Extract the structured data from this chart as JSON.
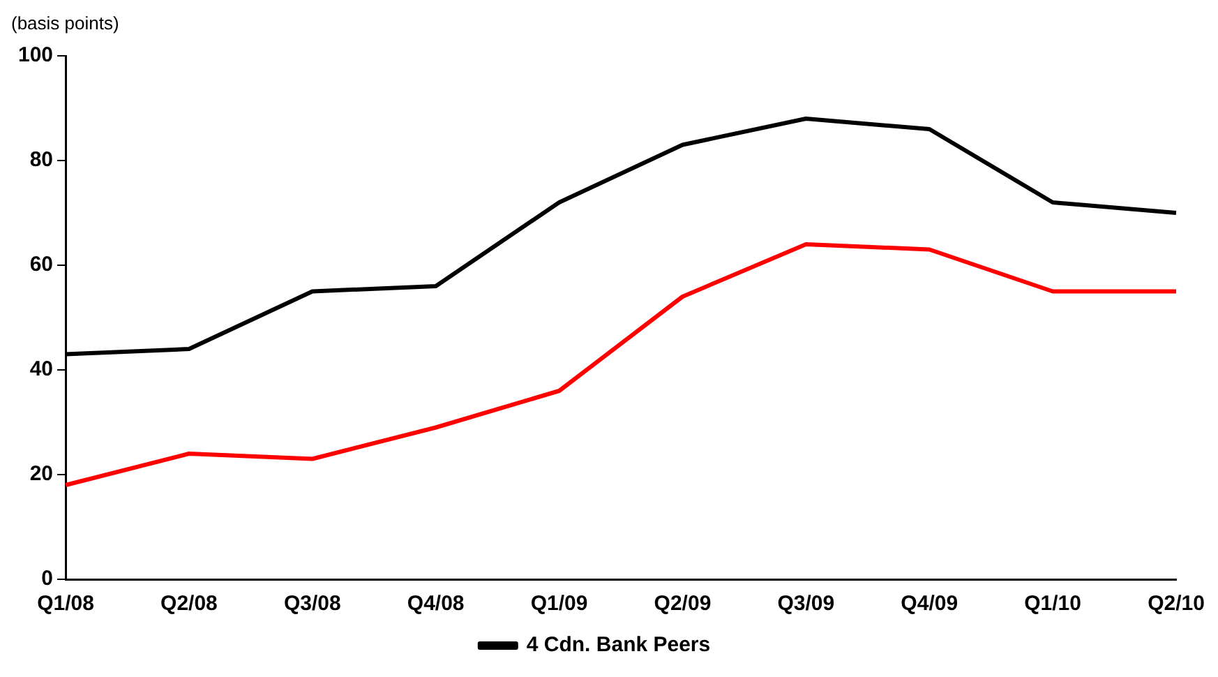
{
  "chart_data": {
    "type": "line",
    "ylabel": "(basis points)",
    "categories": [
      "Q1/08",
      "Q2/08",
      "Q3/08",
      "Q4/08",
      "Q1/09",
      "Q2/09",
      "Q3/09",
      "Q4/09",
      "Q1/10",
      "Q2/10"
    ],
    "series": [
      {
        "color": "#ff0000",
        "values": [
          18,
          24,
          23,
          29,
          36,
          54,
          64,
          63,
          55,
          55
        ]
      },
      {
        "name": "4 Cdn. Bank Peers",
        "color": "#000000",
        "values": [
          43,
          44,
          55,
          56,
          72,
          83,
          88,
          86,
          72,
          70
        ]
      }
    ],
    "ylim": [
      0,
      100
    ],
    "yticks": [
      0,
      20,
      40,
      60,
      80,
      100
    ],
    "grid": false,
    "legend": "bottom",
    "marker": "none",
    "line_style": "solid"
  }
}
